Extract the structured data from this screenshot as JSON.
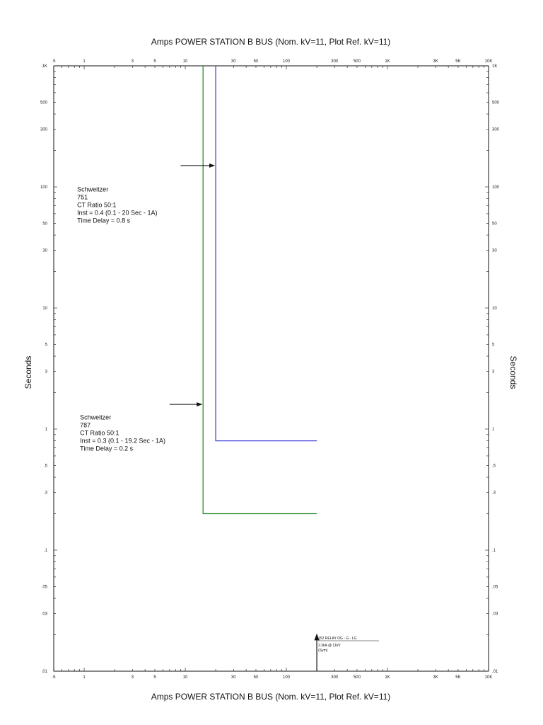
{
  "chart_data": {
    "type": "line",
    "title_top": "Amps   POWER STATION B BUS (Nom. kV=11, Plot Ref. kV=11)",
    "title_bottom": "Amps   POWER STATION B BUS (Nom. kV=11, Plot Ref. kV=11)",
    "ylabel": "Seconds",
    "xscale": "log",
    "yscale": "log",
    "xlim": [
      0.5,
      10000
    ],
    "ylim": [
      0.01,
      1000
    ],
    "x_tick_labels": [
      {
        "v": 0.5,
        "t": ".5"
      },
      {
        "v": 1,
        "t": "1"
      },
      {
        "v": 3,
        "t": "3"
      },
      {
        "v": 5,
        "t": "5"
      },
      {
        "v": 10,
        "t": "10"
      },
      {
        "v": 30,
        "t": "30"
      },
      {
        "v": 50,
        "t": "50"
      },
      {
        "v": 100,
        "t": "100"
      },
      {
        "v": 300,
        "t": "300"
      },
      {
        "v": 500,
        "t": "500"
      },
      {
        "v": 1000,
        "t": "1K"
      },
      {
        "v": 3000,
        "t": "3K"
      },
      {
        "v": 5000,
        "t": "5K"
      },
      {
        "v": 10000,
        "t": "10K"
      }
    ],
    "y_tick_labels": [
      {
        "v": 1000,
        "t": "1K"
      },
      {
        "v": 500,
        "t": "500"
      },
      {
        "v": 300,
        "t": "300"
      },
      {
        "v": 100,
        "t": "100"
      },
      {
        "v": 50,
        "t": "50"
      },
      {
        "v": 30,
        "t": "30"
      },
      {
        "v": 10,
        "t": "10"
      },
      {
        "v": 5,
        "t": "5"
      },
      {
        "v": 3,
        "t": "3"
      },
      {
        "v": 1,
        "t": "1"
      },
      {
        "v": 0.5,
        "t": ".5"
      },
      {
        "v": 0.3,
        "t": ".3"
      },
      {
        "v": 0.1,
        "t": ".1"
      },
      {
        "v": 0.05,
        "t": ".05"
      },
      {
        "v": 0.03,
        "t": ".03"
      },
      {
        "v": 0.01,
        "t": ".01"
      }
    ],
    "series": [
      {
        "color": "#4444dd",
        "points": [
          [
            20,
            1000
          ],
          [
            20,
            0.8
          ],
          [
            200,
            0.8
          ]
        ]
      },
      {
        "color": "#2e8b2e",
        "points": [
          [
            15,
            1000
          ],
          [
            15,
            0.2
          ],
          [
            200,
            0.2
          ]
        ]
      }
    ],
    "annotations": [
      {
        "lines": [
          "Schweitzer",
          "751",
          "CT Ratio 50:1",
          "Inst = 0.4 (0.1 - 20  Sec - 1A)",
          "Time Delay = 0.8 s"
        ],
        "at": [
          0.75,
          80
        ],
        "arrow_from": [
          9,
          150
        ],
        "arrow_to": [
          20,
          150
        ]
      },
      {
        "lines": [
          "Schweitzer",
          "787",
          "CT Ratio 50:1",
          "Inst = 0.3 (0.1 - 19.2  Sec - 1A)",
          "Time Delay = 0.2 s"
        ],
        "at": [
          0.8,
          1.05
        ],
        "arrow_from": [
          7,
          1.6
        ],
        "arrow_to": [
          15,
          1.6
        ]
      }
    ],
    "relay_marker": {
      "x": 200,
      "label": "152 RELAY OG - G - LG",
      "sub1": "2.3kA @ 11kV",
      "sub2": "(Sym)"
    }
  }
}
